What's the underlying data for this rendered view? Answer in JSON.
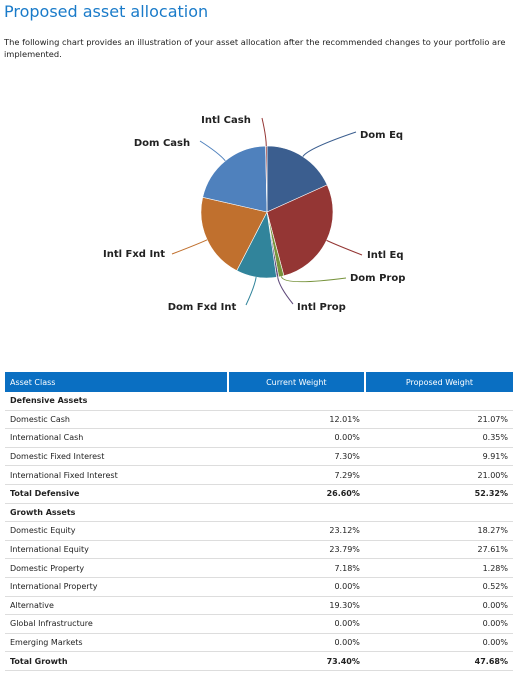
{
  "header": {
    "title": "Proposed asset allocation",
    "intro": "The following chart provides an illustration of your asset allocation after the recommended changes to your portfolio are implemented."
  },
  "chart_data": {
    "type": "pie",
    "categories": [
      "Dom Eq",
      "Intl Eq",
      "Dom Prop",
      "Intl Prop",
      "Dom Fxd Int",
      "Intl Fxd Int",
      "Dom Cash",
      "Intl Cash"
    ],
    "values": [
      18.27,
      27.61,
      1.28,
      0.52,
      9.91,
      21.0,
      21.07,
      0.35
    ],
    "colors": [
      "#3b5e8f",
      "#943634",
      "#77933c",
      "#5f497a",
      "#31849b",
      "#c0702e",
      "#4f81bd",
      "#953735"
    ]
  },
  "table": {
    "headers": [
      "Asset Class",
      "Current Weight",
      "Proposed Weight"
    ],
    "sections": [
      {
        "title": "Defensive Assets",
        "rows": [
          [
            "Domestic Cash",
            "12.01%",
            "21.07%"
          ],
          [
            "International Cash",
            "0.00%",
            "0.35%"
          ],
          [
            "Domestic Fixed Interest",
            "7.30%",
            "9.91%"
          ],
          [
            "International Fixed Interest",
            "7.29%",
            "21.00%"
          ]
        ],
        "total": [
          "Total Defensive",
          "26.60%",
          "52.32%"
        ]
      },
      {
        "title": "Growth Assets",
        "rows": [
          [
            "Domestic Equity",
            "23.12%",
            "18.27%"
          ],
          [
            "International Equity",
            "23.79%",
            "27.61%"
          ],
          [
            "Domestic Property",
            "7.18%",
            "1.28%"
          ],
          [
            "International Property",
            "0.00%",
            "0.52%"
          ],
          [
            "Alternative",
            "19.30%",
            "0.00%"
          ],
          [
            "Global Infrastructure",
            "0.00%",
            "0.00%"
          ],
          [
            "Emerging Markets",
            "0.00%",
            "0.00%"
          ]
        ],
        "total": [
          "Total Growth",
          "73.40%",
          "47.68%"
        ]
      }
    ]
  }
}
